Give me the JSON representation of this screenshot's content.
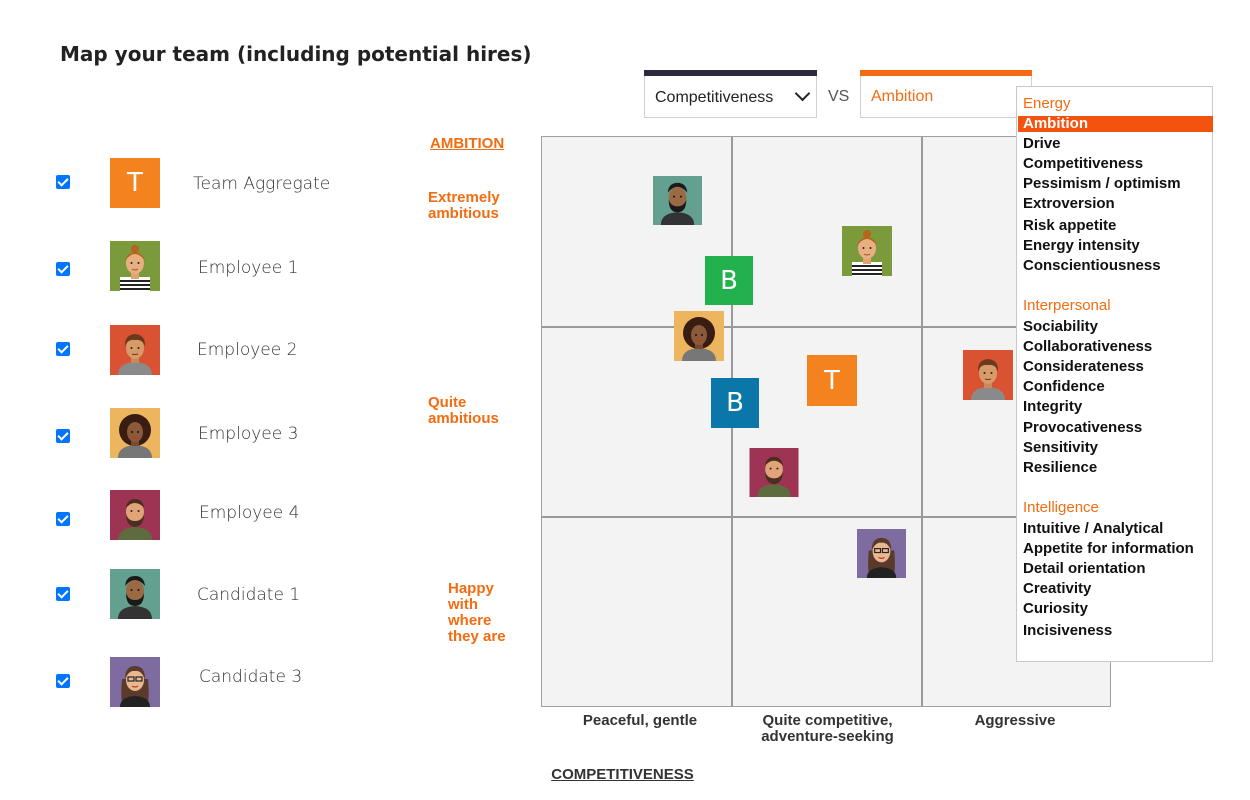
{
  "title": "Map your team (including potential hires)",
  "members": [
    {
      "name": "Team Aggregate",
      "checked": true,
      "initial": "T",
      "color": "#f4821f"
    },
    {
      "name": "Employee 1",
      "checked": true,
      "avatar": "woman-bun-avatar",
      "color": "#7a9a3c"
    },
    {
      "name": "Employee 2",
      "checked": true,
      "avatar": "man-curly-avatar",
      "color": "#d95333"
    },
    {
      "name": "Employee 3",
      "checked": true,
      "avatar": "woman-afro-avatar",
      "color": "#edb55e"
    },
    {
      "name": "Employee 4",
      "checked": true,
      "avatar": "man-beard-avatar",
      "color": "#9e3453"
    },
    {
      "name": "Candidate 1",
      "checked": true,
      "avatar": "man-dark-beard-avatar",
      "color": "#64a090"
    },
    {
      "name": "Candidate 3",
      "checked": true,
      "avatar": "woman-glasses-avatar",
      "color": "#7e6ba0"
    }
  ],
  "selectors": {
    "x_value": "Competitiveness",
    "vs": "VS",
    "y_value": "Ambition",
    "x_bar_color": "#2b2b3d",
    "y_bar_color": "#f36c11"
  },
  "chart": {
    "y_title": "AMBITION",
    "y_levels": [
      "Extremely ambitious",
      "Quite ambitious",
      "Happy with where they are"
    ],
    "x_title": "COMPETITIVENESS",
    "x_levels": [
      "Peaceful, gentle",
      "Quite competitive, adventure-seeking",
      "Aggressive"
    ],
    "markers": {
      "team": "T",
      "b1": "B",
      "b2": "B",
      "b1_color": "#22b14c",
      "b2_color": "#0b77a8"
    }
  },
  "dropdown": {
    "groups": [
      {
        "label": "Energy",
        "items": [
          "Ambition",
          "Drive",
          "Competitiveness",
          "Pessimism / optimism",
          "Extroversion",
          "Risk appetite",
          "Energy intensity",
          "Conscientiousness"
        ]
      },
      {
        "label": "Interpersonal",
        "items": [
          "Sociability",
          "Collaborativeness",
          "Considerateness",
          "Confidence",
          "Integrity",
          "Provocativeness",
          "Sensitivity",
          "Resilience"
        ]
      },
      {
        "label": "Intelligence",
        "items": [
          "Intuitive / Analytical",
          "Appetite for information",
          "Detail orientation",
          "Creativity",
          "Curiosity",
          "Incisiveness"
        ]
      }
    ],
    "selected": "Ambition"
  }
}
